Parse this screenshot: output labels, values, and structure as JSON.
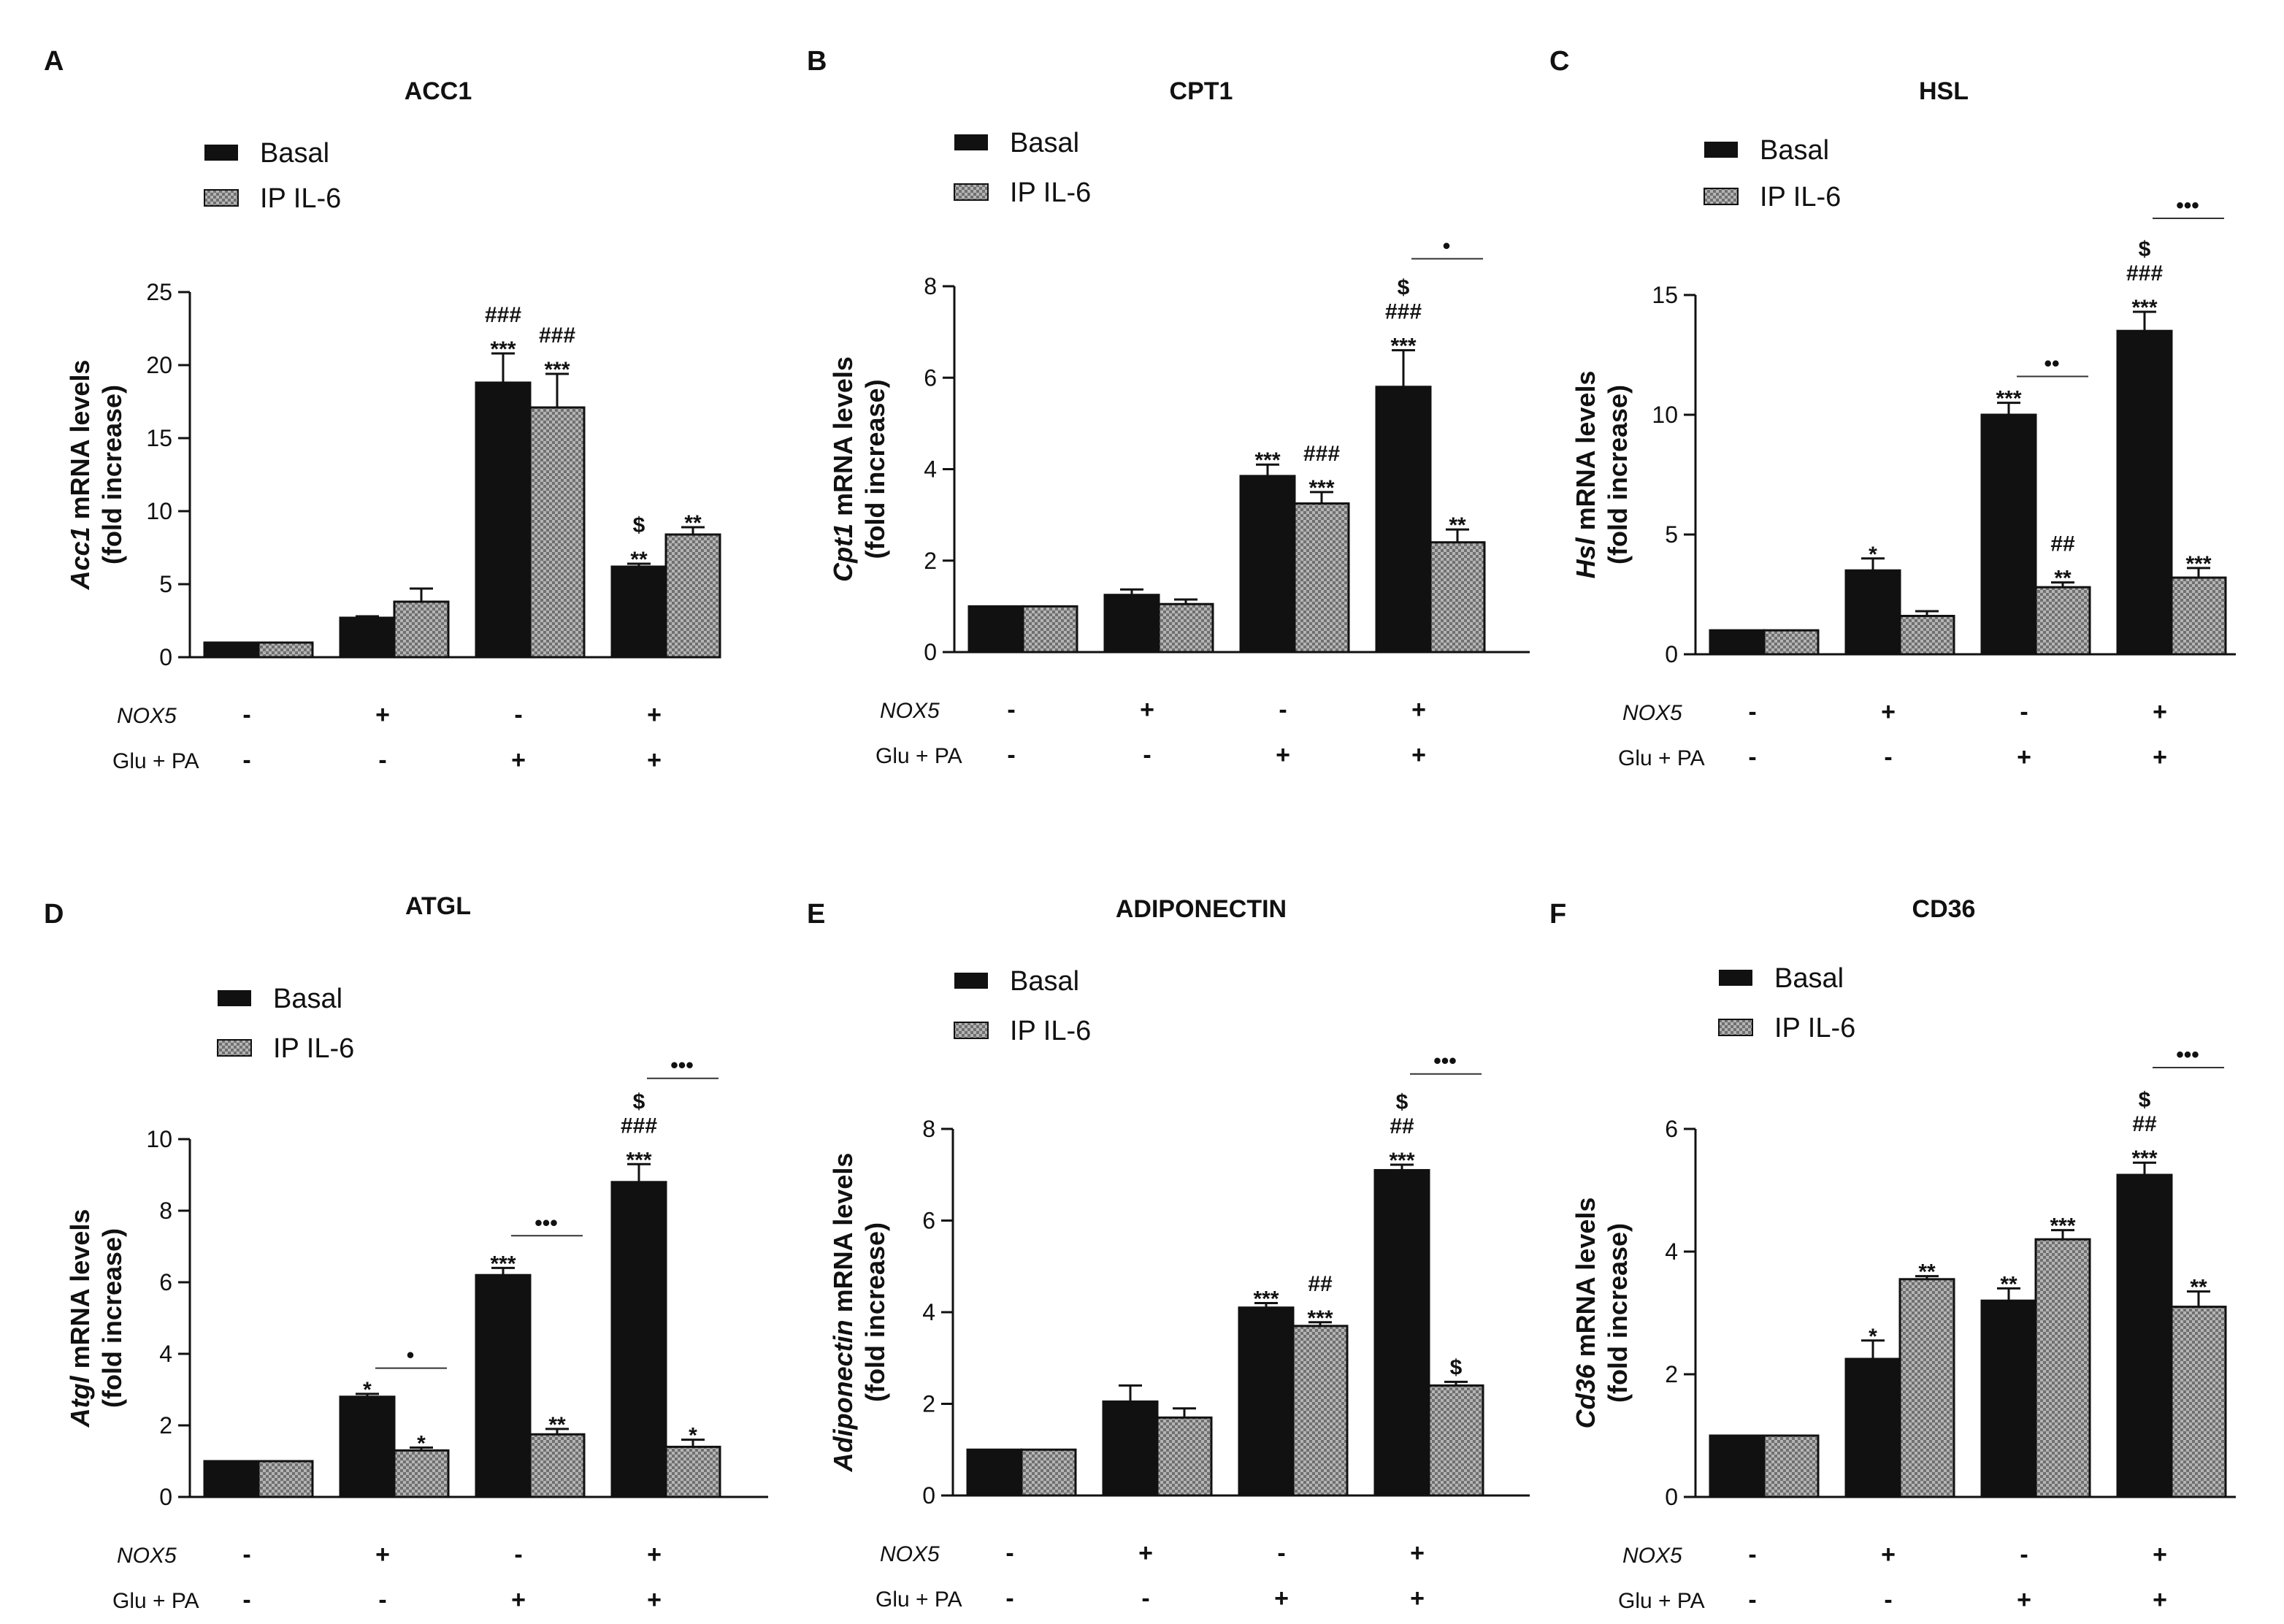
{
  "chart_data": [
    {
      "panel": "A",
      "title": "ACC1",
      "type": "bar",
      "ylabel_gene": "Acc1",
      "ylabel_rest": " mRNA levels",
      "ylabel_line2": "(fold increase)",
      "ylim": [
        0,
        25
      ],
      "yticks": [
        0,
        5,
        10,
        15,
        20,
        25
      ],
      "series": [
        {
          "name": "Basal",
          "values": [
            1.0,
            2.7,
            18.8,
            6.2
          ],
          "errors": [
            0,
            0.1,
            2.0,
            0.2
          ]
        },
        {
          "name": "IP IL-6",
          "values": [
            1.0,
            3.8,
            17.1,
            8.4
          ],
          "errors": [
            0,
            0.9,
            2.3,
            0.5
          ]
        }
      ],
      "annotations": [
        {
          "group": 2,
          "bar": 0,
          "lines": [
            "###",
            "***"
          ]
        },
        {
          "group": 2,
          "bar": 1,
          "lines": [
            "###",
            "***"
          ]
        },
        {
          "group": 3,
          "bar": 0,
          "lines": [
            "$",
            "**"
          ]
        },
        {
          "group": 3,
          "bar": 1,
          "lines": [
            "**"
          ]
        }
      ],
      "brackets": []
    },
    {
      "panel": "B",
      "title": "CPT1",
      "type": "bar",
      "ylabel_gene": "Cpt1",
      "ylabel_rest": " mRNA levels",
      "ylabel_line2": "(fold increase)",
      "ylim": [
        0,
        8
      ],
      "yticks": [
        0,
        2,
        4,
        6,
        8
      ],
      "series": [
        {
          "name": "Basal",
          "values": [
            1.0,
            1.25,
            3.85,
            5.8
          ],
          "errors": [
            0,
            0.12,
            0.25,
            0.8
          ]
        },
        {
          "name": "IP IL-6",
          "values": [
            1.0,
            1.05,
            3.25,
            2.4
          ],
          "errors": [
            0,
            0.1,
            0.25,
            0.28
          ]
        }
      ],
      "annotations": [
        {
          "group": 2,
          "bar": 0,
          "lines": [
            "***"
          ]
        },
        {
          "group": 2,
          "bar": 1,
          "lines": [
            "###",
            "***"
          ]
        },
        {
          "group": 3,
          "bar": 0,
          "lines": [
            "$",
            "###",
            "***"
          ]
        },
        {
          "group": 3,
          "bar": 1,
          "lines": [
            "**"
          ]
        }
      ],
      "brackets": [
        {
          "group": 3,
          "y": 8.6,
          "marks": "•"
        }
      ]
    },
    {
      "panel": "C",
      "title": "HSL",
      "type": "bar",
      "ylabel_gene": "Hsl",
      "ylabel_rest": " mRNA levels",
      "ylabel_line2": "(fold increase)",
      "ylim": [
        0,
        15
      ],
      "yticks": [
        0,
        5,
        10,
        15
      ],
      "series": [
        {
          "name": "Basal",
          "values": [
            1.0,
            3.5,
            10.0,
            13.5
          ],
          "errors": [
            0,
            0.5,
            0.5,
            0.8
          ]
        },
        {
          "name": "IP IL-6",
          "values": [
            1.0,
            1.6,
            2.8,
            3.2
          ],
          "errors": [
            0,
            0.2,
            0.2,
            0.4
          ]
        }
      ],
      "annotations": [
        {
          "group": 1,
          "bar": 0,
          "lines": [
            "*"
          ]
        },
        {
          "group": 2,
          "bar": 0,
          "lines": [
            "***"
          ]
        },
        {
          "group": 2,
          "bar": 1,
          "lines": [
            "##",
            "**"
          ]
        },
        {
          "group": 3,
          "bar": 0,
          "lines": [
            "$",
            "###",
            "***"
          ]
        },
        {
          "group": 3,
          "bar": 1,
          "lines": [
            "***"
          ]
        }
      ],
      "brackets": [
        {
          "group": 2,
          "y": 11.6,
          "marks": "••"
        },
        {
          "group": 3,
          "y": 18.2,
          "marks": "•••"
        }
      ]
    },
    {
      "panel": "D",
      "title": "ATGL",
      "type": "bar",
      "ylabel_gene": "Atgl",
      "ylabel_rest": " mRNA levels",
      "ylabel_line2": "(fold increase)",
      "ylim": [
        0,
        10
      ],
      "yticks": [
        0,
        2,
        4,
        6,
        8,
        10
      ],
      "series": [
        {
          "name": "Basal",
          "values": [
            1.0,
            2.8,
            6.2,
            8.8
          ],
          "errors": [
            0,
            0.08,
            0.2,
            0.5
          ]
        },
        {
          "name": "IP IL-6",
          "values": [
            1.0,
            1.3,
            1.75,
            1.4
          ],
          "errors": [
            0,
            0.08,
            0.15,
            0.2
          ]
        }
      ],
      "annotations": [
        {
          "group": 1,
          "bar": 0,
          "lines": [
            "*"
          ]
        },
        {
          "group": 1,
          "bar": 1,
          "lines": [
            "*"
          ]
        },
        {
          "group": 2,
          "bar": 0,
          "lines": [
            "***"
          ]
        },
        {
          "group": 2,
          "bar": 1,
          "lines": [
            "**"
          ]
        },
        {
          "group": 3,
          "bar": 0,
          "lines": [
            "$",
            "###",
            "***"
          ]
        },
        {
          "group": 3,
          "bar": 1,
          "lines": [
            "*"
          ]
        }
      ],
      "brackets": [
        {
          "group": 1,
          "y": 3.6,
          "marks": "•"
        },
        {
          "group": 2,
          "y": 7.3,
          "marks": "•••"
        },
        {
          "group": 3,
          "y": 11.7,
          "marks": "•••"
        }
      ]
    },
    {
      "panel": "E",
      "title": "ADIPONECTIN",
      "type": "bar",
      "ylabel_gene": "Adiponectin",
      "ylabel_rest": " mRNA levels",
      "ylabel_line2": "(fold increase)",
      "ylim": [
        0,
        8
      ],
      "yticks": [
        0,
        2,
        4,
        6,
        8
      ],
      "series": [
        {
          "name": "Basal",
          "values": [
            1.0,
            2.05,
            4.1,
            7.1
          ],
          "errors": [
            0,
            0.35,
            0.1,
            0.12
          ]
        },
        {
          "name": "IP IL-6",
          "values": [
            1.0,
            1.7,
            3.7,
            2.4
          ],
          "errors": [
            0,
            0.2,
            0.08,
            0.08
          ]
        }
      ],
      "annotations": [
        {
          "group": 2,
          "bar": 0,
          "lines": [
            "***"
          ]
        },
        {
          "group": 2,
          "bar": 1,
          "lines": [
            "##",
            "***"
          ]
        },
        {
          "group": 3,
          "bar": 0,
          "lines": [
            "$",
            "##",
            "***"
          ]
        },
        {
          "group": 3,
          "bar": 1,
          "lines": [
            "$"
          ]
        }
      ],
      "brackets": [
        {
          "group": 3,
          "y": 9.2,
          "marks": "•••"
        }
      ]
    },
    {
      "panel": "F",
      "title": "CD36",
      "type": "bar",
      "ylabel_gene": "Cd36",
      "ylabel_rest": " mRNA levels",
      "ylabel_line2": "(fold increase)",
      "ylim": [
        0,
        6
      ],
      "yticks": [
        0,
        2,
        4,
        6
      ],
      "series": [
        {
          "name": "Basal",
          "values": [
            1.0,
            2.25,
            3.2,
            5.25
          ],
          "errors": [
            0,
            0.3,
            0.2,
            0.2
          ]
        },
        {
          "name": "IP IL-6",
          "values": [
            1.0,
            3.55,
            4.2,
            3.1
          ],
          "errors": [
            0,
            0.05,
            0.15,
            0.25
          ]
        }
      ],
      "annotations": [
        {
          "group": 1,
          "bar": 0,
          "lines": [
            "*"
          ]
        },
        {
          "group": 1,
          "bar": 1,
          "lines": [
            "**"
          ]
        },
        {
          "group": 2,
          "bar": 0,
          "lines": [
            "**"
          ]
        },
        {
          "group": 2,
          "bar": 1,
          "lines": [
            "***"
          ]
        },
        {
          "group": 3,
          "bar": 0,
          "lines": [
            "$",
            "##",
            "***"
          ]
        },
        {
          "group": 3,
          "bar": 1,
          "lines": [
            "**"
          ]
        }
      ],
      "brackets": [
        {
          "group": 3,
          "y": 7.0,
          "marks": "•••"
        }
      ]
    }
  ],
  "conditions": {
    "row1_label": "NOX5",
    "row1_values": [
      "-",
      "+",
      "-",
      "+"
    ],
    "row2_label": "Glu + PA",
    "row2_values": [
      "-",
      "-",
      "+",
      "+"
    ]
  },
  "colors": {
    "basal": "#111111",
    "il6": "#9a9a9a",
    "text": "#111111"
  }
}
